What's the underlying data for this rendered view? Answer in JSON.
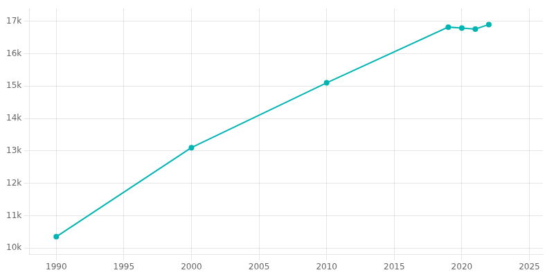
{
  "chart_data": {
    "type": "line",
    "x": [
      1990,
      2000,
      2010,
      2019,
      2020,
      2021,
      2022
    ],
    "values": [
      10350,
      13100,
      15100,
      16820,
      16790,
      16760,
      16900
    ],
    "color": "#00B4B4",
    "marker": "circle",
    "xlim": [
      1988,
      2026
    ],
    "xticks": [
      1990,
      1995,
      2000,
      2005,
      2010,
      2015,
      2020,
      2025
    ],
    "ylim": [
      9800,
      17400
    ],
    "yticks": [
      {
        "value": 10000,
        "label": "10k"
      },
      {
        "value": 11000,
        "label": "11k"
      },
      {
        "value": 12000,
        "label": "12k"
      },
      {
        "value": 13000,
        "label": "13k"
      },
      {
        "value": 14000,
        "label": "14k"
      },
      {
        "value": 15000,
        "label": "15k"
      },
      {
        "value": 16000,
        "label": "16k"
      },
      {
        "value": 17000,
        "label": "17k"
      }
    ],
    "grid": true
  }
}
